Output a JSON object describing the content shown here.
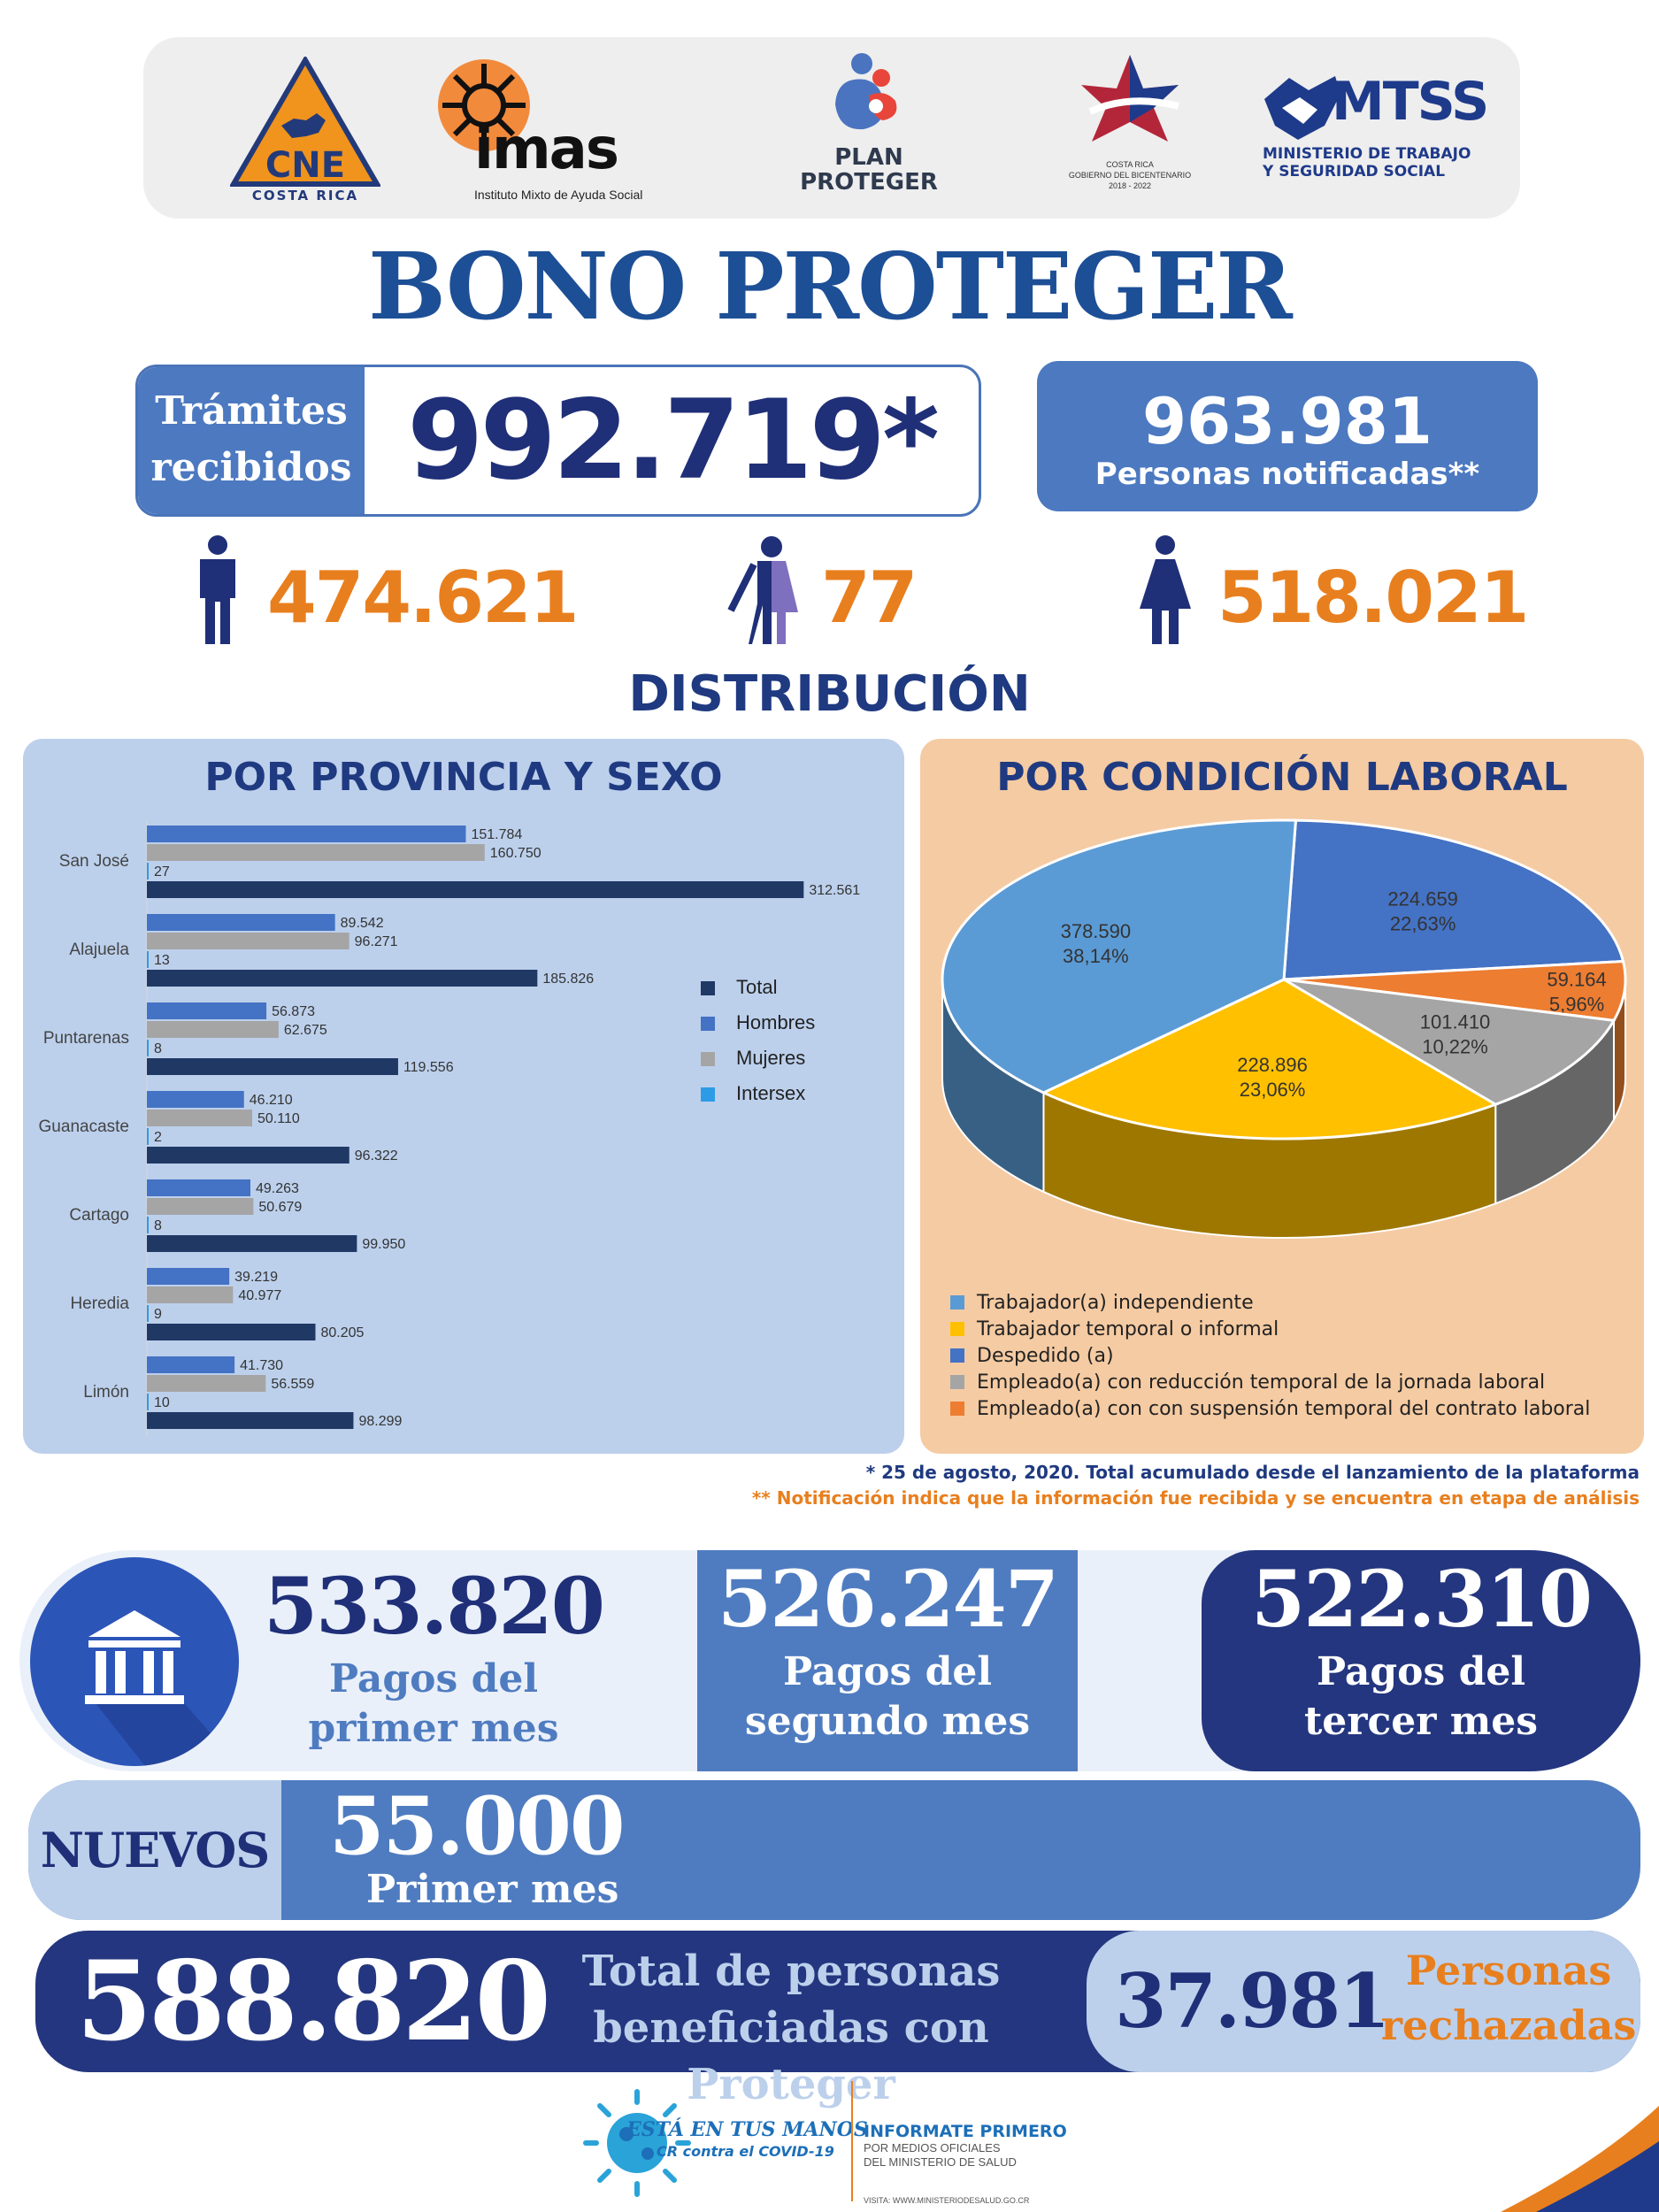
{
  "header": {
    "logos": {
      "cne": {
        "word": "CNE",
        "sub": "COSTA RICA"
      },
      "imas": {
        "word": "imas",
        "sub": "Instituto Mixto de Ayuda Social"
      },
      "plan": {
        "line1": "PLAN",
        "line2": "PROTEGER"
      },
      "cr": {
        "line1": "COSTA RICA",
        "line2": "GOBIERNO DEL BICENTENARIO",
        "line3": "2018 - 2022"
      },
      "mtss": {
        "word": "MTSS",
        "line1": "MINISTERIO DE TRABAJO",
        "line2": "Y SEGURIDAD SOCIAL"
      }
    }
  },
  "title": "BONO PROTEGER",
  "tramites": {
    "label_line1": "Trámites",
    "label_line2": "recibidos",
    "value": "992.719*"
  },
  "notificadas": {
    "value": "963.981",
    "label": "Personas notificadas**"
  },
  "gender": {
    "hombres": "474.621",
    "intersex": "77",
    "mujeres": "518.021"
  },
  "distribucion_title": "DISTRIBUCIÓN",
  "panels": {
    "provincia_title": "POR PROVINCIA Y SEXO",
    "laboral_title": "POR CONDICIÓN LABORAL"
  },
  "colors": {
    "total": "#203864",
    "hombres": "#4472c4",
    "mujeres": "#a5a5a5",
    "intersex": "#2e9be6",
    "accent": "#e87f1e",
    "navy": "#1f2f78"
  },
  "chart_data": [
    {
      "type": "bar",
      "orientation": "horizontal",
      "title": "POR PROVINCIA Y SEXO",
      "categories": [
        "San José",
        "Alajuela",
        "Puntarenas",
        "Guanacaste",
        "Cartago",
        "Heredia",
        "Limón"
      ],
      "series": [
        {
          "name": "Hombres",
          "values": [
            151784,
            89542,
            56873,
            46210,
            49263,
            39219,
            41730
          ],
          "labels": [
            "151.784",
            "89.542",
            "56.873",
            "46.210",
            "49.263",
            "39.219",
            "41.730"
          ]
        },
        {
          "name": "Mujeres",
          "values": [
            160750,
            96271,
            62675,
            50110,
            50679,
            40977,
            56559
          ],
          "labels": [
            "160.750",
            "96.271",
            "62.675",
            "50.110",
            "50.679",
            "40.977",
            "56.559"
          ]
        },
        {
          "name": "Intersex",
          "values": [
            27,
            13,
            8,
            2,
            8,
            9,
            10
          ],
          "labels": [
            "27",
            "13",
            "8",
            "2",
            "8",
            "9",
            "10"
          ]
        },
        {
          "name": "Total",
          "values": [
            312561,
            185826,
            119556,
            96322,
            99950,
            80205,
            98299
          ],
          "labels": [
            "312.561",
            "185.826",
            "119.556",
            "96.322",
            "99.950",
            "80.205",
            "98.299"
          ]
        }
      ],
      "legend_order": [
        "Total",
        "Hombres",
        "Mujeres",
        "Intersex"
      ],
      "legend_position": "right",
      "xlim": [
        0,
        320000
      ]
    },
    {
      "type": "pie",
      "title": "POR CONDICIÓN LABORAL",
      "style": "3d",
      "slices": [
        {
          "name": "Despedido (a)",
          "value": 224659,
          "label": "224.659",
          "pct": "22,63%",
          "color": "#4472c4"
        },
        {
          "name": "Empleado(a) con con suspensión temporal del contrato laboral",
          "value": 59164,
          "label": "59.164",
          "pct": "5,96%",
          "color": "#ed7d31"
        },
        {
          "name": "Empleado(a) con reducción temporal de la jornada laboral",
          "value": 101410,
          "label": "101.410",
          "pct": "10,22%",
          "color": "#a5a5a5"
        },
        {
          "name": "Trabajador temporal o informal",
          "value": 228896,
          "label": "228.896",
          "pct": "23,06%",
          "color": "#ffc000"
        },
        {
          "name": "Trabajador(a) independiente",
          "value": 378590,
          "label": "378.590",
          "pct": "38,14%",
          "color": "#5b9bd5"
        }
      ],
      "legend": [
        "Trabajador(a) independiente",
        "Trabajador temporal o informal",
        "Despedido (a)",
        "Empleado(a) con reducción temporal de la jornada laboral",
        "Empleado(a) con con suspensión temporal del contrato laboral"
      ],
      "legend_position": "bottom"
    }
  ],
  "notes": {
    "note1": "* 25 de agosto, 2020. Total acumulado desde el lanzamiento de la plataforma",
    "note2": "** Notificación indica que la información fue recibida y se encuentra en etapa de análisis"
  },
  "pagos": {
    "mes1": {
      "value": "533.820",
      "line1": "Pagos del",
      "line2": "primer mes"
    },
    "mes2": {
      "value": "526.247",
      "line1": "Pagos del",
      "line2": "segundo mes"
    },
    "mes3": {
      "value": "522.310",
      "line1": "Pagos del",
      "line2": "tercer mes"
    }
  },
  "nuevos": {
    "tag": "NUEVOS",
    "value": "55.000",
    "label": "Primer mes"
  },
  "total": {
    "value": "588.820",
    "line1": "Total de personas",
    "line2": "beneficiadas con Proteger"
  },
  "rechazadas": {
    "value": "37.981",
    "line1": "Personas",
    "line2": "rechazadas"
  },
  "footer": {
    "covid_line1": "ESTÁ EN TUS MANOS",
    "covid_line2": "CR contra el COVID-19",
    "info_title": "INFORMATE PRIMERO",
    "info_line1": "POR MEDIOS OFICIALES",
    "info_line2": "DEL MINISTERIO DE SALUD",
    "info_url": "VISITA: WWW.MINISTERIODESALUD.GO.CR"
  }
}
